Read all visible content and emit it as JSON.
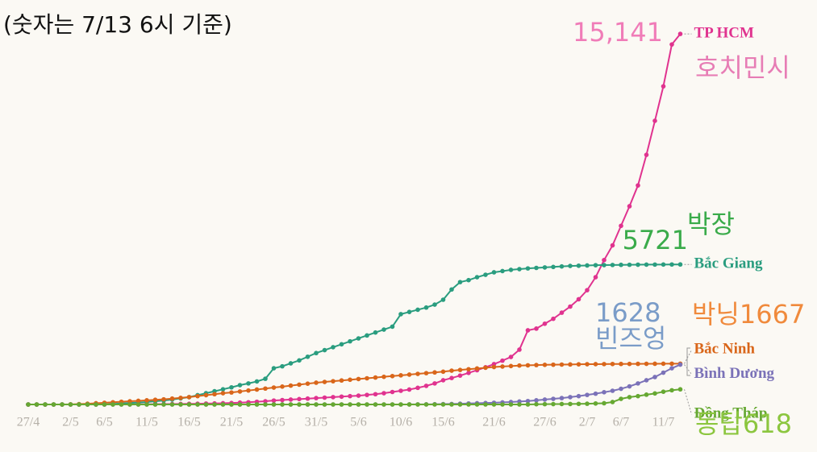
{
  "chart_data": {
    "type": "line",
    "title": "(숫자는 7/13 6시 기준)",
    "categories": [
      "27/4",
      null,
      null,
      null,
      null,
      "2/5",
      null,
      null,
      null,
      "6/5",
      null,
      null,
      null,
      null,
      "11/5",
      null,
      null,
      null,
      null,
      "16/5",
      null,
      null,
      null,
      null,
      "21/5",
      null,
      null,
      null,
      null,
      "26/5",
      null,
      null,
      null,
      null,
      "31/5",
      null,
      null,
      null,
      null,
      "5/6",
      null,
      null,
      null,
      null,
      "10/6",
      null,
      null,
      null,
      null,
      "15/6",
      null,
      null,
      null,
      null,
      null,
      "21/6",
      null,
      null,
      null,
      null,
      null,
      "27/6",
      null,
      null,
      null,
      null,
      "2/7",
      null,
      null,
      null,
      "6/7",
      null,
      null,
      null,
      null,
      "11/7",
      null,
      null
    ],
    "ylim": [
      0,
      16000
    ],
    "series": [
      {
        "name": "TP HCM",
        "color": "#e0338f",
        "values": [
          0,
          0,
          0,
          0,
          0,
          0,
          0,
          0,
          0,
          0,
          2,
          4,
          6,
          8,
          10,
          12,
          15,
          18,
          22,
          26,
          30,
          36,
          42,
          50,
          60,
          75,
          90,
          110,
          130,
          160,
          180,
          200,
          220,
          240,
          260,
          280,
          300,
          320,
          340,
          360,
          390,
          420,
          460,
          510,
          560,
          610,
          680,
          760,
          860,
          990,
          1080,
          1180,
          1290,
          1400,
          1520,
          1650,
          1790,
          1940,
          2240,
          3030,
          3100,
          3300,
          3500,
          3750,
          4000,
          4300,
          4670,
          5200,
          5900,
          6500,
          7300,
          8100,
          8950,
          10200,
          11590,
          13000,
          14710,
          15141
        ]
      },
      {
        "name": "Bắc Giang",
        "color": "#2a9d7f",
        "values": [
          0,
          0,
          0,
          0,
          0,
          0,
          0,
          0,
          0,
          5,
          20,
          40,
          60,
          80,
          100,
          130,
          160,
          200,
          250,
          300,
          380,
          460,
          540,
          620,
          700,
          790,
          860,
          940,
          1050,
          1480,
          1560,
          1680,
          1800,
          1950,
          2100,
          2220,
          2340,
          2460,
          2580,
          2700,
          2820,
          2940,
          3060,
          3180,
          3690,
          3780,
          3870,
          3960,
          4080,
          4280,
          4700,
          5000,
          5080,
          5200,
          5300,
          5400,
          5450,
          5500,
          5530,
          5560,
          5580,
          5600,
          5620,
          5640,
          5660,
          5670,
          5680,
          5690,
          5695,
          5700,
          5705,
          5708,
          5711,
          5714,
          5716,
          5718,
          5720,
          5721
        ]
      },
      {
        "name": "Bắc Ninh",
        "color": "#d9661a",
        "values": [
          0,
          0,
          0,
          0,
          0,
          5,
          15,
          30,
          50,
          70,
          90,
          110,
          130,
          150,
          170,
          190,
          210,
          240,
          270,
          300,
          340,
          380,
          420,
          460,
          490,
          530,
          570,
          610,
          650,
          690,
          730,
          770,
          810,
          850,
          890,
          920,
          950,
          980,
          1010,
          1040,
          1070,
          1100,
          1130,
          1160,
          1190,
          1220,
          1250,
          1280,
          1310,
          1340,
          1380,
          1410,
          1440,
          1470,
          1500,
          1530,
          1550,
          1570,
          1590,
          1600,
          1610,
          1620,
          1625,
          1630,
          1635,
          1640,
          1645,
          1648,
          1650,
          1653,
          1655,
          1657,
          1659,
          1661,
          1663,
          1665,
          1666,
          1667
        ]
      },
      {
        "name": "Bình Dương",
        "color": "#7b72b8",
        "values": [
          0,
          0,
          0,
          0,
          0,
          0,
          0,
          0,
          0,
          0,
          0,
          0,
          0,
          0,
          0,
          0,
          0,
          0,
          0,
          0,
          0,
          0,
          0,
          0,
          0,
          0,
          0,
          0,
          0,
          0,
          0,
          0,
          0,
          0,
          0,
          0,
          0,
          0,
          0,
          0,
          0,
          0,
          0,
          0,
          0,
          2,
          4,
          6,
          10,
          15,
          20,
          30,
          40,
          50,
          60,
          70,
          85,
          100,
          120,
          140,
          170,
          200,
          230,
          260,
          300,
          340,
          390,
          440,
          500,
          560,
          640,
          740,
          860,
          990,
          1120,
          1300,
          1480,
          1628
        ]
      },
      {
        "name": "Đồng Tháp",
        "color": "#66a832",
        "values": [
          0,
          0,
          0,
          0,
          0,
          0,
          0,
          0,
          0,
          0,
          0,
          0,
          0,
          0,
          0,
          0,
          0,
          0,
          0,
          0,
          0,
          0,
          0,
          0,
          0,
          0,
          0,
          0,
          0,
          0,
          0,
          0,
          0,
          0,
          0,
          0,
          0,
          0,
          0,
          0,
          0,
          0,
          0,
          0,
          0,
          0,
          0,
          0,
          0,
          0,
          0,
          0,
          0,
          0,
          0,
          0,
          0,
          0,
          0,
          0,
          10,
          12,
          15,
          18,
          20,
          25,
          30,
          40,
          50,
          100,
          230,
          300,
          340,
          400,
          450,
          520,
          580,
          618
        ]
      }
    ],
    "annotations": [
      {
        "text": "15,141",
        "color": "#f07cb8"
      },
      {
        "text": "호치민시",
        "color": "#e77db5"
      },
      {
        "text": "5721",
        "color": "#3aab4a"
      },
      {
        "text": "박장",
        "color": "#3aab4a"
      },
      {
        "text": "1628",
        "color": "#7a9cc8"
      },
      {
        "text": "빈즈엉",
        "color": "#7a9cc8"
      },
      {
        "text": "박닝1667",
        "color": "#f08a3c"
      },
      {
        "text": "동탑618",
        "color": "#8cc63f"
      }
    ]
  }
}
